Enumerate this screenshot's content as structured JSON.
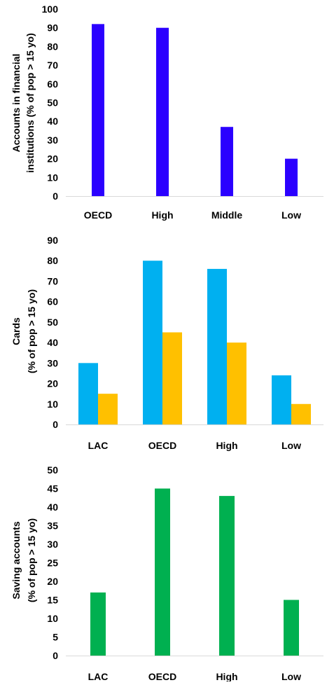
{
  "chart_data": [
    {
      "type": "bar",
      "categories": [
        "OECD",
        "High",
        "Middle",
        "Low"
      ],
      "series": [
        {
          "values": [
            92,
            90,
            37,
            20
          ],
          "color": "#2B00FF"
        }
      ],
      "ylabel_lines": [
        "Accounts in financial",
        "institutions (% of pop > 15 yo)"
      ],
      "ylim": [
        0,
        100
      ],
      "yticks": [
        0,
        10,
        20,
        30,
        40,
        50,
        60,
        70,
        80,
        90,
        100
      ],
      "grid": false
    },
    {
      "type": "bar",
      "categories": [
        "LAC",
        "OECD",
        "High",
        "Low"
      ],
      "series": [
        {
          "values": [
            30,
            80,
            76,
            24
          ],
          "color": "#00B0F0"
        },
        {
          "values": [
            15,
            45,
            40,
            10
          ],
          "color": "#FFC000"
        }
      ],
      "ylabel_lines": [
        "Cards",
        "(% of pop > 15 yo)"
      ],
      "ylim": [
        0,
        90
      ],
      "yticks": [
        0,
        10,
        20,
        30,
        40,
        50,
        60,
        70,
        80,
        90
      ],
      "grid": false
    },
    {
      "type": "bar",
      "categories": [
        "LAC",
        "OECD",
        "High",
        "Low"
      ],
      "series": [
        {
          "values": [
            17,
            45,
            43,
            15
          ],
          "color": "#00B050"
        }
      ],
      "ylabel_lines": [
        "Saving accounts",
        "(% of pop > 15 yo)"
      ],
      "ylim": [
        0,
        50
      ],
      "yticks": [
        0,
        5,
        10,
        15,
        20,
        25,
        30,
        35,
        40,
        45,
        50
      ],
      "grid": false
    }
  ]
}
